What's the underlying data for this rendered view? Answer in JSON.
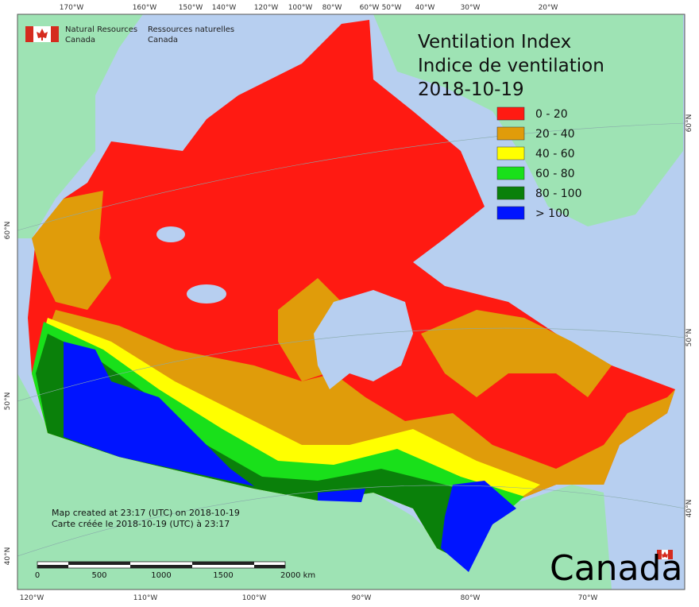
{
  "title": [
    "Ventilation Index",
    "Indice de ventilation",
    "2018-10-19"
  ],
  "legend": [
    {
      "label": "0 - 20",
      "color": "#ff1a12"
    },
    {
      "label": "20 - 40",
      "color": "#e09c0a"
    },
    {
      "label": "40 - 60",
      "color": "#ffff00"
    },
    {
      "label": "60 - 80",
      "color": "#19e01a"
    },
    {
      "label": "80 - 100",
      "color": "#0a800a"
    },
    {
      "label": "> 100",
      "color": "#0014ff"
    }
  ],
  "agency": {
    "english": [
      "Natural Resources",
      "Canada"
    ],
    "french": [
      "Ressources naturelles",
      "Canada"
    ]
  },
  "credits": [
    "Map created at 23:17 (UTC) on 2018-10-19",
    "Carte créée le 2018-10-19 (UTC) à 23:17"
  ],
  "scale_bar": {
    "labels": [
      "0",
      "500",
      "1000",
      "1500",
      "2000 km"
    ]
  },
  "wordmark": "Canada",
  "graticule": {
    "top": [
      "170°W",
      "160°W",
      "150°W",
      "140°W",
      "120°W",
      "100°W",
      "80°W",
      "60°W",
      "50°W",
      "40°W",
      "30°W",
      "20°W"
    ],
    "bottom": [
      "120°W",
      "110°W",
      "100°W",
      "90°W",
      "80°W",
      "70°W"
    ],
    "left": [
      "60°N",
      "50°N",
      "40°N"
    ],
    "right": [
      "60°N",
      "50°N",
      "40°N"
    ]
  }
}
